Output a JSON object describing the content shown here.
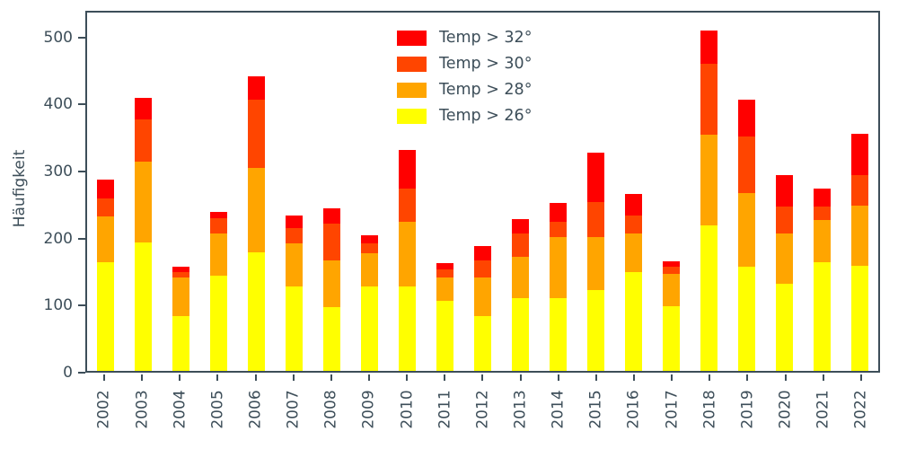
{
  "axis_color": "#3d4e59",
  "chart_data": {
    "type": "bar",
    "subtype": "stacked",
    "title": "",
    "xlabel": "",
    "ylabel": "Häufigkeit",
    "ylim": [
      0,
      540
    ],
    "yticks": [
      0,
      100,
      200,
      300,
      400,
      500
    ],
    "grid": false,
    "legend_position": "upper center inside",
    "categories": [
      "2002",
      "2003",
      "2004",
      "2005",
      "2006",
      "2007",
      "2008",
      "2009",
      "2010",
      "2011",
      "2012",
      "2013",
      "2014",
      "2015",
      "2016",
      "2017",
      "2018",
      "2019",
      "2020",
      "2021",
      "2022"
    ],
    "series": [
      {
        "name": "Temp > 26°",
        "color": "#ffff00",
        "values": [
          162,
          192,
          82,
          142,
          177,
          126,
          95,
          126,
          126,
          105,
          82,
          108,
          108,
          120,
          147,
          97,
          217,
          155,
          130,
          162,
          157
        ]
      },
      {
        "name": "Temp > 28°",
        "color": "#ffa500",
        "values": [
          68,
          120,
          58,
          63,
          126,
          64,
          70,
          49,
          96,
          35,
          58,
          62,
          92,
          80,
          58,
          48,
          135,
          110,
          75,
          63,
          90
        ]
      },
      {
        "name": "Temp > 30°",
        "color": "#ff4500",
        "values": [
          27,
          63,
          8,
          23,
          102,
          23,
          55,
          15,
          50,
          12,
          25,
          35,
          22,
          52,
          27,
          10,
          106,
          85,
          40,
          20,
          45
        ]
      },
      {
        "name": "Temp > 32°",
        "color": "#ff0000",
        "values": [
          28,
          33,
          7,
          9,
          35,
          19,
          23,
          12,
          58,
          9,
          21,
          21,
          29,
          73,
          32,
          9,
          50,
          55,
          47,
          27,
          62
        ]
      }
    ],
    "legend_order": [
      "Temp > 32°",
      "Temp > 30°",
      "Temp > 28°",
      "Temp > 26°"
    ],
    "totals": [
      285,
      408,
      155,
      237,
      440,
      232,
      243,
      202,
      330,
      161,
      186,
      226,
      251,
      325,
      264,
      164,
      508,
      405,
      292,
      272,
      354
    ]
  }
}
